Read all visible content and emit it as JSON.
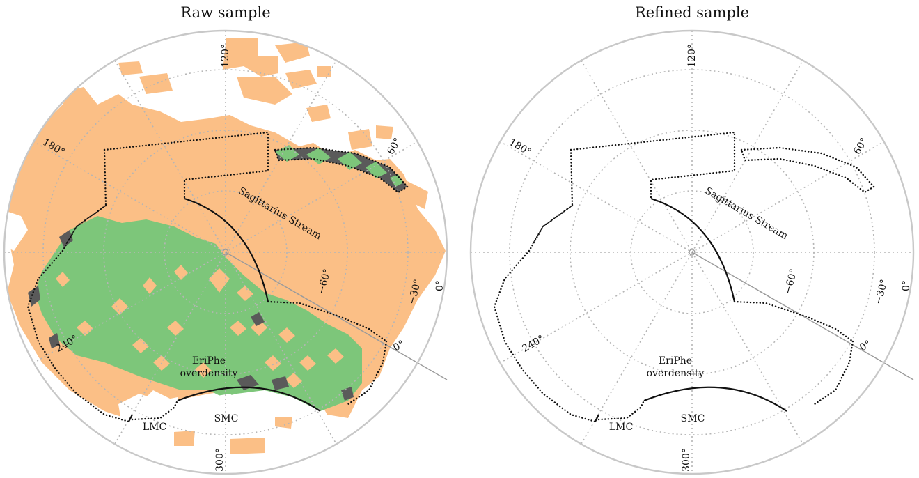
{
  "panels": [
    {
      "title": "Raw sample",
      "longitude_ticks": [
        "120°",
        "180°",
        "240°",
        "300°",
        "0°",
        "60°"
      ],
      "latitude_ticks": [
        "−30°",
        "−60°"
      ],
      "labels": {
        "stream": "Sagittarius Stream",
        "eriphe_line1": "EriPhe",
        "eriphe_line2": "overdensity",
        "lmc": "LMC",
        "smc": "SMC"
      },
      "green_coverage": "high"
    },
    {
      "title": "Refined sample",
      "longitude_ticks": [
        "120°",
        "180°",
        "240°",
        "300°",
        "0°",
        "60°"
      ],
      "latitude_ticks": [
        "−30°",
        "−60°"
      ],
      "labels": {
        "stream": "Sagittarius Stream",
        "eriphe_line1": "EriPhe",
        "eriphe_line2": "overdensity",
        "lmc": "LMC",
        "smc": "SMC"
      },
      "green_coverage": "low"
    }
  ],
  "colors": {
    "footprint": "#fbbf86",
    "selected": "#7dc67a",
    "masked": "#5a5a5a",
    "grid": "#b5b5b5",
    "outline": "#c8c8c8",
    "boundary": "#111111"
  }
}
